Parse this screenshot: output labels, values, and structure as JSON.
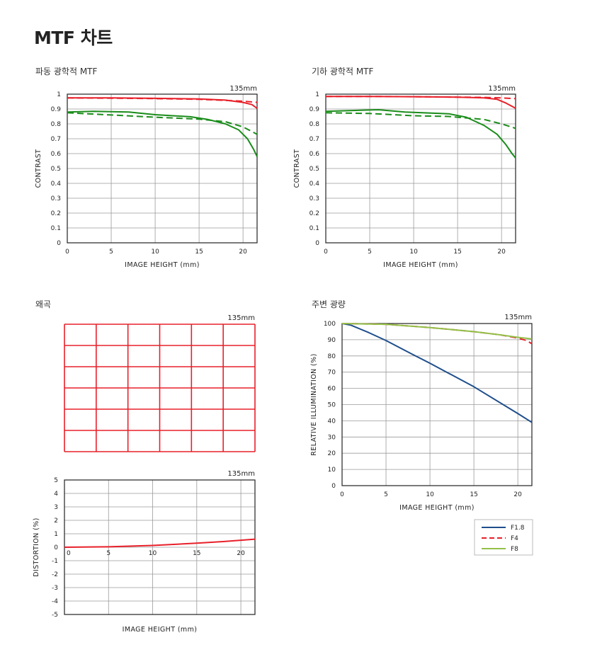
{
  "page": {
    "title": "MTF 차트",
    "sections": {
      "mtf_diffraction": "파동 광학적 MTF",
      "mtf_geometric": "기하 광학적 MTF",
      "distortion": "왜곡",
      "vignetting": "주변 광량"
    }
  },
  "colors": {
    "red": "#e8202a",
    "green": "#1a8c1a",
    "blue": "#1f4e8c",
    "lime": "#93c049",
    "grid": "#9a9a9a"
  },
  "chart_data": [
    {
      "id": "mtf_diffraction",
      "type": "line",
      "title": "파동 광학적 MTF",
      "lens_label": "135mm",
      "xlabel": "IMAGE HEIGHT (mm)",
      "ylabel": "CONTRAST",
      "xlim": [
        0,
        21.6
      ],
      "ylim": [
        0,
        1
      ],
      "xticks": [
        0,
        5,
        10,
        15,
        20
      ],
      "yticks": [
        0,
        0.1,
        0.2,
        0.3,
        0.4,
        0.5,
        0.6,
        0.7,
        0.8,
        0.9,
        1
      ],
      "ytick_labels": [
        "0",
        "0.1",
        "0.2",
        "0.3",
        "0.4",
        "0.5",
        "0.6",
        "0.7",
        "0.8",
        "0.9",
        "1"
      ],
      "grid": true,
      "series": [
        {
          "color": "red",
          "dash": false,
          "points": [
            [
              0,
              0.975
            ],
            [
              5,
              0.975
            ],
            [
              10,
              0.972
            ],
            [
              15,
              0.968
            ],
            [
              18,
              0.96
            ],
            [
              20,
              0.945
            ],
            [
              21,
              0.93
            ],
            [
              21.6,
              0.905
            ]
          ]
        },
        {
          "color": "red",
          "dash": true,
          "points": [
            [
              0,
              0.975
            ],
            [
              5,
              0.973
            ],
            [
              10,
              0.97
            ],
            [
              15,
              0.965
            ],
            [
              18,
              0.958
            ],
            [
              20,
              0.953
            ],
            [
              21.6,
              0.945
            ]
          ]
        },
        {
          "color": "green",
          "dash": false,
          "points": [
            [
              0,
              0.88
            ],
            [
              3,
              0.885
            ],
            [
              7,
              0.88
            ],
            [
              10,
              0.862
            ],
            [
              14,
              0.848
            ],
            [
              16,
              0.83
            ],
            [
              18,
              0.8
            ],
            [
              19.5,
              0.76
            ],
            [
              20.5,
              0.7
            ],
            [
              21.2,
              0.63
            ],
            [
              21.6,
              0.58
            ]
          ]
        },
        {
          "color": "green",
          "dash": true,
          "points": [
            [
              0,
              0.875
            ],
            [
              5,
              0.86
            ],
            [
              10,
              0.845
            ],
            [
              15,
              0.832
            ],
            [
              18,
              0.815
            ],
            [
              20,
              0.78
            ],
            [
              21.6,
              0.73
            ]
          ]
        }
      ]
    },
    {
      "id": "mtf_geometric",
      "type": "line",
      "title": "기하 광학적 MTF",
      "lens_label": "135mm",
      "xlabel": "IMAGE HEIGHT (mm)",
      "ylabel": "CONTRAST",
      "xlim": [
        0,
        21.6
      ],
      "ylim": [
        0,
        1
      ],
      "xticks": [
        0,
        5,
        10,
        15,
        20
      ],
      "yticks": [
        0,
        0.1,
        0.2,
        0.3,
        0.4,
        0.5,
        0.6,
        0.7,
        0.8,
        0.9,
        1
      ],
      "ytick_labels": [
        "0",
        "0.1",
        "0.2",
        "0.3",
        "0.4",
        "0.5",
        "0.6",
        "0.7",
        "0.8",
        "0.9",
        "1"
      ],
      "grid": true,
      "series": [
        {
          "color": "red",
          "dash": false,
          "points": [
            [
              0,
              0.985
            ],
            [
              5,
              0.985
            ],
            [
              10,
              0.983
            ],
            [
              15,
              0.98
            ],
            [
              18,
              0.975
            ],
            [
              19.5,
              0.965
            ],
            [
              20.5,
              0.94
            ],
            [
              21.6,
              0.905
            ]
          ]
        },
        {
          "color": "red",
          "dash": true,
          "points": [
            [
              0,
              0.985
            ],
            [
              5,
              0.985
            ],
            [
              10,
              0.983
            ],
            [
              15,
              0.98
            ],
            [
              18,
              0.978
            ],
            [
              20,
              0.975
            ],
            [
              21.6,
              0.97
            ]
          ]
        },
        {
          "color": "green",
          "dash": false,
          "points": [
            [
              0,
              0.885
            ],
            [
              3,
              0.89
            ],
            [
              6,
              0.895
            ],
            [
              9,
              0.88
            ],
            [
              12,
              0.873
            ],
            [
              14,
              0.868
            ],
            [
              16,
              0.845
            ],
            [
              18,
              0.79
            ],
            [
              19.5,
              0.73
            ],
            [
              20.5,
              0.66
            ],
            [
              21.2,
              0.6
            ],
            [
              21.6,
              0.57
            ]
          ]
        },
        {
          "color": "green",
          "dash": true,
          "points": [
            [
              0,
              0.875
            ],
            [
              5,
              0.87
            ],
            [
              10,
              0.855
            ],
            [
              14,
              0.85
            ],
            [
              16,
              0.84
            ],
            [
              18,
              0.83
            ],
            [
              20,
              0.8
            ],
            [
              21.6,
              0.77
            ]
          ]
        }
      ]
    },
    {
      "id": "distortion_grid",
      "type": "grid",
      "title": "왜곡",
      "lens_label": "135mm",
      "columns": 6,
      "rows": 6,
      "color": "red"
    },
    {
      "id": "distortion",
      "type": "line",
      "lens_label": "135mm",
      "xlabel": "IMAGE HEIGHT (mm)",
      "ylabel": "DISTORTION (%)",
      "xlim": [
        0,
        21.6
      ],
      "ylim": [
        -5,
        5
      ],
      "xticks": [
        0,
        5,
        10,
        15,
        20
      ],
      "yticks": [
        -5,
        -4,
        -3,
        -2,
        -1,
        0,
        1,
        2,
        3,
        4,
        5
      ],
      "ytick_labels": [
        "-5",
        "-4",
        "-3",
        "-2",
        "-1",
        "0",
        "1",
        "2",
        "3",
        "4",
        "5"
      ],
      "grid": true,
      "series": [
        {
          "color": "red",
          "dash": false,
          "points": [
            [
              0,
              0
            ],
            [
              5,
              0.03
            ],
            [
              10,
              0.13
            ],
            [
              15,
              0.3
            ],
            [
              18,
              0.42
            ],
            [
              20,
              0.52
            ],
            [
              21.6,
              0.6
            ]
          ]
        }
      ]
    },
    {
      "id": "vignetting",
      "type": "line",
      "title": "주변 광량",
      "lens_label": "135mm",
      "xlabel": "IMAGE HEIGHT (mm)",
      "ylabel": "RELATIVE ILLUMINATION (%)",
      "xlim": [
        0,
        21.6
      ],
      "ylim": [
        0,
        100
      ],
      "xticks": [
        0,
        5,
        10,
        15,
        20
      ],
      "yticks": [
        0,
        10,
        20,
        30,
        40,
        50,
        60,
        70,
        80,
        90,
        100
      ],
      "ytick_labels": [
        "0",
        "10",
        "20",
        "30",
        "40",
        "50",
        "60",
        "70",
        "80",
        "90",
        "100"
      ],
      "grid": true,
      "series": [
        {
          "name": "F1.8",
          "color": "blue",
          "dash": false,
          "points": [
            [
              0,
              100
            ],
            [
              1,
              99
            ],
            [
              3,
              94.5
            ],
            [
              5,
              89.5
            ],
            [
              8,
              81
            ],
            [
              10,
              75.5
            ],
            [
              15,
              61
            ],
            [
              20,
              44.5
            ],
            [
              21.6,
              39
            ]
          ]
        },
        {
          "name": "F4",
          "color": "red",
          "dash": true,
          "points": [
            [
              0,
              100
            ],
            [
              5,
              99.5
            ],
            [
              10,
              97.5
            ],
            [
              15,
              95
            ],
            [
              18,
              93
            ],
            [
              20,
              91
            ],
            [
              21,
              89.5
            ],
            [
              21.6,
              87.5
            ]
          ]
        },
        {
          "name": "F8",
          "color": "lime",
          "dash": false,
          "points": [
            [
              0,
              100
            ],
            [
              5,
              99.5
            ],
            [
              10,
              97.5
            ],
            [
              15,
              95
            ],
            [
              18,
              93
            ],
            [
              20,
              91.5
            ],
            [
              21.6,
              90.5
            ]
          ]
        }
      ],
      "legend": {
        "position": "below-right",
        "entries": [
          "F1.8",
          "F4",
          "F8"
        ]
      }
    }
  ]
}
